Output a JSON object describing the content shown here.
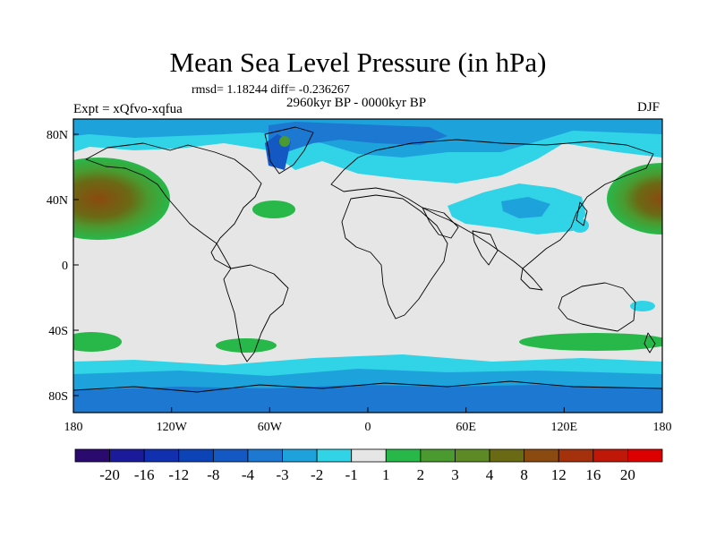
{
  "title": "Mean Sea Level Pressure (in hPa)",
  "stats": "rmsd= 1.18244 diff= -0.236267",
  "experiment": "Expt = xQfvo-xqfua",
  "period": "2960kyr BP - 0000kyr BP",
  "season": "DJF",
  "axes": {
    "x_ticks": [
      "180",
      "120W",
      "60W",
      "0",
      "60E",
      "120E",
      "180"
    ],
    "y_ticks": [
      "80N",
      "40N",
      "0",
      "40S",
      "80S"
    ]
  },
  "colorbar": {
    "colors": [
      "#2a0a6e",
      "#1a1a9a",
      "#1030b0",
      "#0c44b8",
      "#1458c4",
      "#1c78d0",
      "#1ea2dc",
      "#30d4e6",
      "#e6e6e6",
      "#28b84a",
      "#4a9a30",
      "#5e8a26",
      "#6a6a14",
      "#8a4a10",
      "#a4300c",
      "#c01808",
      "#dc0000"
    ],
    "labels": [
      "-20",
      "-16",
      "-12",
      "-8",
      "-4",
      "-3",
      "-2",
      "-1",
      "1",
      "2",
      "3",
      "4",
      "8",
      "12",
      "16",
      "20"
    ]
  },
  "map_colors": {
    "background": "#e6e6e6",
    "light_cyan": "#30d4e6",
    "medium_blue": "#1ea2dc",
    "blue": "#1c78d0",
    "dark_blue": "#1458c4",
    "green": "#28b84a",
    "dark_green": "#4a9a30",
    "olive": "#6a6a14",
    "brown": "#8a4a10"
  }
}
